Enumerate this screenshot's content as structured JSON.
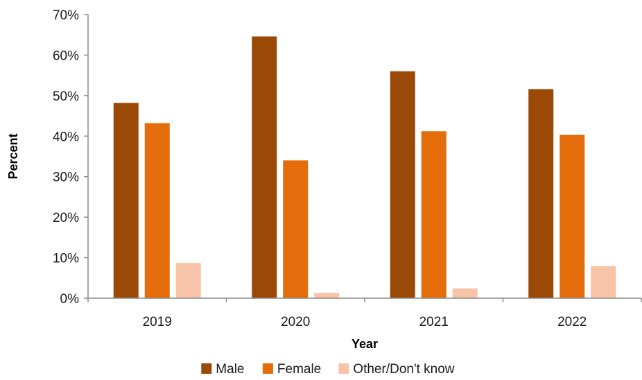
{
  "chart_data": {
    "type": "bar",
    "title": "",
    "xlabel": "Year",
    "ylabel": "Percent",
    "categories": [
      "2019",
      "2020",
      "2021",
      "2022"
    ],
    "series": [
      {
        "name": "Male",
        "color": "#9a4a06",
        "values": [
          48.2,
          64.6,
          56.0,
          51.6
        ]
      },
      {
        "name": "Female",
        "color": "#e46c0a",
        "values": [
          43.2,
          34.0,
          41.2,
          40.3
        ]
      },
      {
        "name": "Other/Don't know",
        "color": "#f8c4a8",
        "values": [
          8.7,
          1.3,
          2.4,
          7.9
        ]
      }
    ],
    "ylim": [
      0,
      70
    ],
    "yticks": [
      0,
      10,
      20,
      30,
      40,
      50,
      60,
      70
    ],
    "ytick_format": "percent",
    "grid": false,
    "legend_position": "bottom"
  }
}
